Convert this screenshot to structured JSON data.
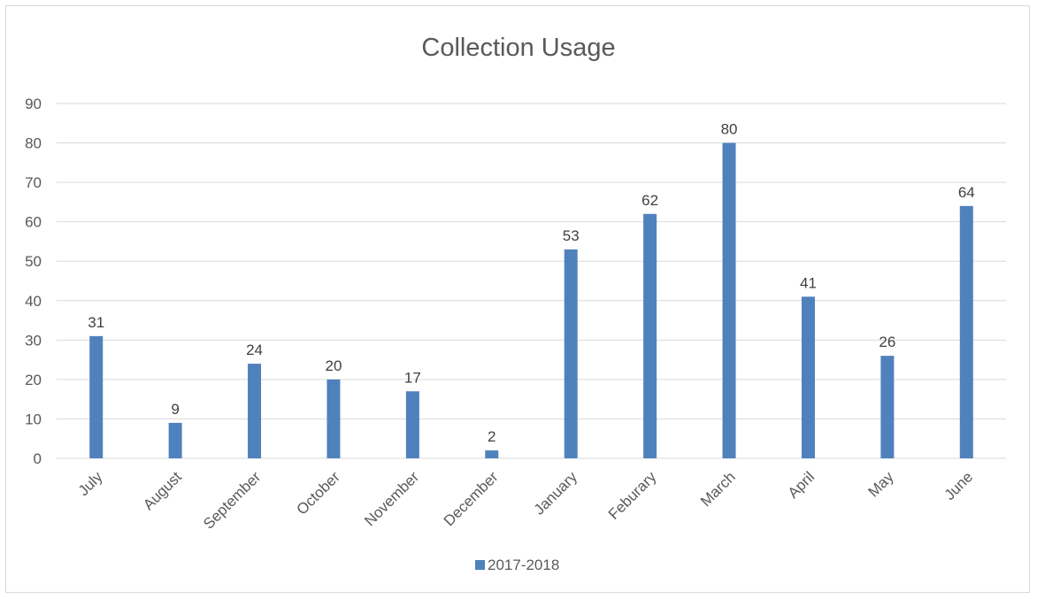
{
  "chart_data": {
    "type": "bar",
    "title": "Collection Usage",
    "categories": [
      "July",
      "August",
      "September",
      "October",
      "November",
      "December",
      "January",
      "Feburary",
      "March",
      "April",
      "May",
      "June"
    ],
    "series": [
      {
        "name": "2017-2018",
        "values": [
          31,
          9,
          24,
          20,
          17,
          2,
          53,
          62,
          80,
          41,
          26,
          64
        ],
        "color": "#4f81bd"
      }
    ],
    "xlabel": "",
    "ylabel": "",
    "ylim": [
      0,
      90
    ],
    "yticks": [
      0,
      10,
      20,
      30,
      40,
      50,
      60,
      70,
      80,
      90
    ],
    "grid": true,
    "data_labels": true,
    "legend_position": "bottom"
  }
}
